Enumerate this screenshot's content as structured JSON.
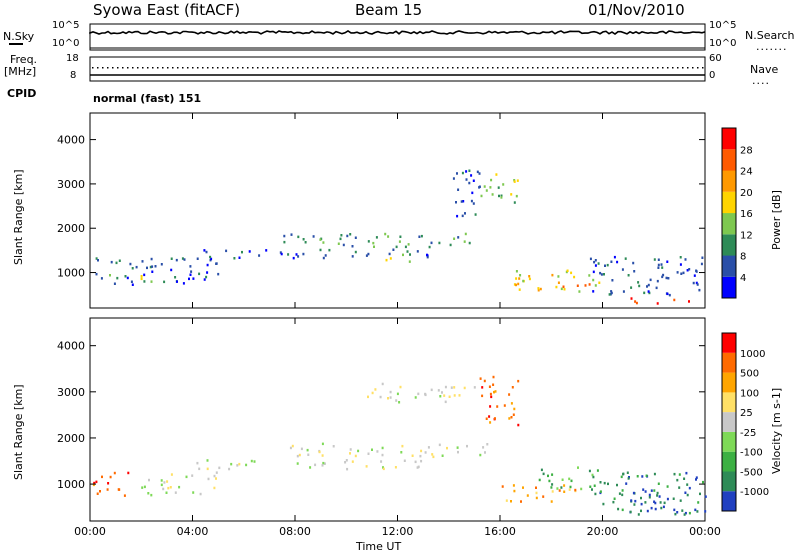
{
  "header": {
    "station": "Syowa East (fitACF)",
    "beam": "Beam 15",
    "date": "01/Nov/2010"
  },
  "top_panels": {
    "nsky_label": "N.Sky",
    "nsearch_label": "N.Search",
    "nsky_ticks": [
      "10^5",
      "10^0"
    ],
    "nsearch_ticks": [
      "10^5",
      "10^0"
    ],
    "freq_label": "Freq.",
    "freq_unit": "[MHz]",
    "freq_ticks": [
      "18",
      "8"
    ],
    "nave_label": "Nave",
    "nave_ticks": [
      "60",
      "0"
    ],
    "cpid_label": "CPID",
    "cpid_value": "normal (fast) 151"
  },
  "chart_data": [
    {
      "type": "heatmap",
      "name": "power-panel",
      "ylabel": "Slant Range [km]",
      "xlabel": "",
      "x_ticks": [
        "00:00",
        "04:00",
        "08:00",
        "12:00",
        "16:00",
        "20:00",
        "00:00"
      ],
      "xlim_hours": [
        0,
        24
      ],
      "ylim": [
        200,
        4600
      ],
      "y_ticks": [
        1000,
        2000,
        3000,
        4000
      ],
      "colorbar": {
        "label": "Power [dB]",
        "levels": [
          "4",
          "8",
          "12",
          "16",
          "20",
          "24",
          "28"
        ],
        "colors": [
          "#0000ff",
          "#2a4fa8",
          "#2e8b57",
          "#7ec850",
          "#ffd400",
          "#ff9900",
          "#ff5a00",
          "#ff0000"
        ]
      },
      "echo_regions": [
        {
          "t0": 0.0,
          "t1": 5.0,
          "r0": 750,
          "r1": 1350,
          "level": 1
        },
        {
          "t0": 0.7,
          "t1": 1.2,
          "r0": 850,
          "r1": 1050,
          "level": 3
        },
        {
          "t0": 1.9,
          "t1": 2.6,
          "r0": 800,
          "r1": 1100,
          "level": 3
        },
        {
          "t0": 4.0,
          "t1": 13.5,
          "r0": 1350,
          "r1": 1550,
          "level": 1
        },
        {
          "t0": 7.5,
          "t1": 15.5,
          "r0": 1600,
          "r1": 1900,
          "level": 2
        },
        {
          "t0": 11.0,
          "t1": 12.5,
          "r0": 1250,
          "r1": 1450,
          "level": 3
        },
        {
          "t0": 14.0,
          "t1": 15.2,
          "r0": 2200,
          "r1": 3400,
          "level": 1
        },
        {
          "t0": 15.2,
          "t1": 16.7,
          "r0": 2600,
          "r1": 3300,
          "level": 3
        },
        {
          "t0": 16.5,
          "t1": 20.0,
          "r0": 600,
          "r1": 1100,
          "level": 4
        },
        {
          "t0": 17.5,
          "t1": 19.5,
          "r0": 700,
          "r1": 850,
          "level": 6
        },
        {
          "t0": 19.5,
          "t1": 24.0,
          "r0": 500,
          "r1": 1400,
          "level": 1
        },
        {
          "t0": 21.0,
          "t1": 23.8,
          "r0": 330,
          "r1": 450,
          "level": 7
        }
      ]
    },
    {
      "type": "heatmap",
      "name": "velocity-panel",
      "ylabel": "Slant Range [km]",
      "xlabel": "Time UT",
      "x_ticks": [
        "00:00",
        "04:00",
        "08:00",
        "12:00",
        "16:00",
        "20:00",
        "00:00"
      ],
      "xlim_hours": [
        0,
        24
      ],
      "ylim": [
        200,
        4600
      ],
      "y_ticks": [
        1000,
        2000,
        3000,
        4000
      ],
      "colorbar": {
        "label": "Velocity [m s-1]",
        "levels": [
          "1000",
          "500",
          "100",
          "25",
          "-25",
          "-100",
          "-500",
          "-1000"
        ],
        "colors": [
          "#2040c0",
          "#2e8b57",
          "#3cb043",
          "#7ed957",
          "#c8c8c8",
          "#ffe066",
          "#ffa500",
          "#ff6a00",
          "#ff0000"
        ]
      },
      "echo_regions": [
        {
          "t0": 0.0,
          "t1": 1.5,
          "r0": 750,
          "r1": 1300,
          "level": 7
        },
        {
          "t0": 1.8,
          "t1": 2.8,
          "r0": 750,
          "r1": 1200,
          "level": 3
        },
        {
          "t0": 2.8,
          "t1": 5.0,
          "r0": 800,
          "r1": 1300,
          "level": 4
        },
        {
          "t0": 4.0,
          "t1": 13.5,
          "r0": 1350,
          "r1": 1550,
          "level": 4
        },
        {
          "t0": 7.5,
          "t1": 15.5,
          "r0": 1600,
          "r1": 1900,
          "level": 4
        },
        {
          "t0": 10.5,
          "t1": 15.0,
          "r0": 2800,
          "r1": 3200,
          "level": 4
        },
        {
          "t0": 15.2,
          "t1": 16.7,
          "r0": 2300,
          "r1": 3400,
          "level": 7
        },
        {
          "t0": 16.0,
          "t1": 19.0,
          "r0": 600,
          "r1": 1000,
          "level": 6
        },
        {
          "t0": 17.5,
          "t1": 20.0,
          "r0": 900,
          "r1": 1400,
          "level": 2
        },
        {
          "t0": 19.5,
          "t1": 24.0,
          "r0": 350,
          "r1": 1300,
          "level": 1
        },
        {
          "t0": 21.0,
          "t1": 24.0,
          "r0": 400,
          "r1": 800,
          "level": 0
        }
      ]
    }
  ]
}
